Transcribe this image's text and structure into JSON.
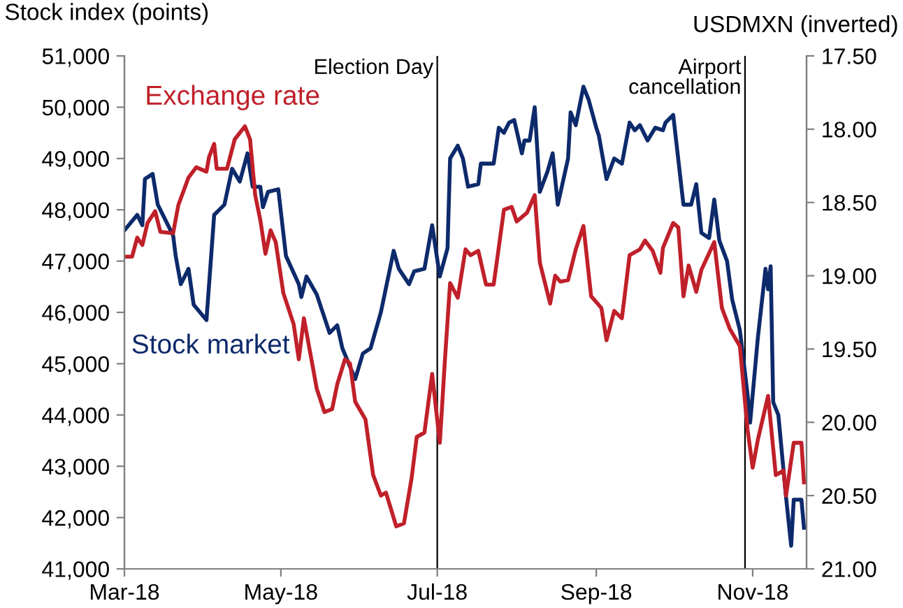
{
  "chart_data": {
    "type": "line",
    "ylabel": "Stock index (points)",
    "y2label": "USDMXN (inverted)",
    "xlim": [
      "2018-03-01",
      "2018-11-22"
    ],
    "xticks": [
      {
        "value": "2018-03-01",
        "label": "Mar-18"
      },
      {
        "value": "2018-05-01",
        "label": "May-18"
      },
      {
        "value": "2018-07-01",
        "label": "Jul-18"
      },
      {
        "value": "2018-09-01",
        "label": "Sep-18"
      },
      {
        "value": "2018-11-01",
        "label": "Nov-18"
      }
    ],
    "ylim": [
      41000,
      51000
    ],
    "yticks": [
      {
        "value": 41000,
        "label": "41,000"
      },
      {
        "value": 42000,
        "label": "42,000"
      },
      {
        "value": 43000,
        "label": "43,000"
      },
      {
        "value": 44000,
        "label": "44,000"
      },
      {
        "value": 45000,
        "label": "45,000"
      },
      {
        "value": 46000,
        "label": "46,000"
      },
      {
        "value": 47000,
        "label": "47,000"
      },
      {
        "value": 48000,
        "label": "48,000"
      },
      {
        "value": 49000,
        "label": "49,000"
      },
      {
        "value": 50000,
        "label": "50,000"
      },
      {
        "value": 51000,
        "label": "51,000"
      }
    ],
    "y2lim": [
      21.0,
      17.5
    ],
    "y2ticks": [
      {
        "value": 17.5,
        "label": "17.50"
      },
      {
        "value": 18.0,
        "label": "18.00"
      },
      {
        "value": 18.5,
        "label": "18.50"
      },
      {
        "value": 19.0,
        "label": "19.00"
      },
      {
        "value": 19.5,
        "label": "19.50"
      },
      {
        "value": 20.0,
        "label": "20.00"
      },
      {
        "value": 20.5,
        "label": "20.50"
      },
      {
        "value": 21.0,
        "label": "21.00"
      }
    ],
    "grid": false,
    "legend": false,
    "marker": "none",
    "line_style": "solid",
    "ref_lines": [
      {
        "axis": "x",
        "value": "2018-07-01",
        "label": "Election Day",
        "color": "#000000"
      },
      {
        "axis": "x",
        "value": "2018-10-29",
        "label": "Airport\ncancellation",
        "color": "#000000"
      }
    ],
    "series": [
      {
        "name": "Stock market",
        "color": "#0d2a6b",
        "x": [
          "2018-03-01",
          "2018-03-06",
          "2018-03-08",
          "2018-03-09",
          "2018-03-12",
          "2018-03-14",
          "2018-03-20",
          "2018-03-21",
          "2018-03-23",
          "2018-03-26",
          "2018-03-28",
          "2018-04-02",
          "2018-04-05",
          "2018-04-09",
          "2018-04-12",
          "2018-04-15",
          "2018-04-18",
          "2018-04-20",
          "2018-04-23",
          "2018-04-24",
          "2018-04-26",
          "2018-04-30",
          "2018-05-03",
          "2018-05-08",
          "2018-05-09",
          "2018-05-11",
          "2018-05-15",
          "2018-05-20",
          "2018-05-23",
          "2018-05-25",
          "2018-05-30",
          "2018-06-02",
          "2018-06-05",
          "2018-06-09",
          "2018-06-14",
          "2018-06-16",
          "2018-06-20",
          "2018-06-22",
          "2018-06-26",
          "2018-06-29",
          "2018-07-02",
          "2018-07-05",
          "2018-07-06",
          "2018-07-09",
          "2018-07-11",
          "2018-07-13",
          "2018-07-17",
          "2018-07-18",
          "2018-07-20",
          "2018-07-23",
          "2018-07-25",
          "2018-07-27",
          "2018-07-29",
          "2018-07-31",
          "2018-08-03",
          "2018-08-04",
          "2018-08-06",
          "2018-08-08",
          "2018-08-10",
          "2018-08-13",
          "2018-08-15",
          "2018-08-17",
          "2018-08-21",
          "2018-08-22",
          "2018-08-24",
          "2018-08-27",
          "2018-08-29",
          "2018-09-01",
          "2018-09-02",
          "2018-09-05",
          "2018-09-08",
          "2018-09-11",
          "2018-09-14",
          "2018-09-16",
          "2018-09-18",
          "2018-09-21",
          "2018-09-24",
          "2018-09-27",
          "2018-09-28",
          "2018-10-01",
          "2018-10-05",
          "2018-10-08",
          "2018-10-10",
          "2018-10-12",
          "2018-10-15",
          "2018-10-17",
          "2018-10-19",
          "2018-10-22",
          "2018-10-24",
          "2018-10-27",
          "2018-10-30",
          "2018-10-31",
          "2018-11-03",
          "2018-11-06",
          "2018-11-07",
          "2018-11-08",
          "2018-11-09",
          "2018-11-11",
          "2018-11-14",
          "2018-11-16",
          "2018-11-17",
          "2018-11-20",
          "2018-11-21"
        ],
        "values": [
          47600,
          47900,
          47700,
          48600,
          48700,
          48100,
          47500,
          47100,
          46550,
          46850,
          46150,
          45850,
          47900,
          48100,
          48800,
          48550,
          49100,
          48450,
          48450,
          48050,
          48350,
          48400,
          47100,
          46550,
          46300,
          46700,
          46350,
          45600,
          45750,
          45300,
          44700,
          45200,
          45300,
          46000,
          47200,
          46850,
          46550,
          46800,
          46850,
          47700,
          46700,
          47250,
          49000,
          49250,
          49000,
          48450,
          48500,
          48900,
          48900,
          48900,
          49600,
          49500,
          49700,
          49750,
          49100,
          49350,
          49350,
          50000,
          48350,
          48750,
          49100,
          48100,
          49000,
          49900,
          49650,
          50400,
          50150,
          49600,
          49450,
          48600,
          49000,
          48900,
          49700,
          49550,
          49650,
          49350,
          49600,
          49550,
          49700,
          49850,
          48100,
          48100,
          48500,
          47550,
          47450,
          48200,
          47400,
          47000,
          46250,
          45650,
          44400,
          43850,
          45500,
          46850,
          46450,
          46900,
          44250,
          44000,
          42400,
          41450,
          42350,
          42350,
          41800
        ]
      },
      {
        "name": "Exchange rate",
        "color": "#c0202a",
        "axis": "y2",
        "x": [
          "2018-03-01",
          "2018-03-04",
          "2018-03-06",
          "2018-03-08",
          "2018-03-10",
          "2018-03-13",
          "2018-03-15",
          "2018-03-20",
          "2018-03-22",
          "2018-03-26",
          "2018-03-29",
          "2018-04-02",
          "2018-04-03",
          "2018-04-05",
          "2018-04-06",
          "2018-04-10",
          "2018-04-13",
          "2018-04-17",
          "2018-04-19",
          "2018-04-21",
          "2018-04-23",
          "2018-04-25",
          "2018-04-27",
          "2018-04-29",
          "2018-05-02",
          "2018-05-06",
          "2018-05-08",
          "2018-05-10",
          "2018-05-15",
          "2018-05-18",
          "2018-05-21",
          "2018-05-23",
          "2018-05-26",
          "2018-05-28",
          "2018-05-30",
          "2018-06-03",
          "2018-06-06",
          "2018-06-09",
          "2018-06-11",
          "2018-06-15",
          "2018-06-18",
          "2018-06-21",
          "2018-06-23",
          "2018-06-26",
          "2018-06-29",
          "2018-07-02",
          "2018-07-04",
          "2018-07-06",
          "2018-07-09",
          "2018-07-12",
          "2018-07-14",
          "2018-07-17",
          "2018-07-20",
          "2018-07-23",
          "2018-07-27",
          "2018-07-30",
          "2018-08-01",
          "2018-08-05",
          "2018-08-08",
          "2018-08-10",
          "2018-08-14",
          "2018-08-16",
          "2018-08-18",
          "2018-08-21",
          "2018-08-24",
          "2018-08-27",
          "2018-08-30",
          "2018-09-03",
          "2018-09-05",
          "2018-09-08",
          "2018-09-11",
          "2018-09-14",
          "2018-09-18",
          "2018-09-20",
          "2018-09-23",
          "2018-09-26",
          "2018-09-27",
          "2018-10-01",
          "2018-10-03",
          "2018-10-05",
          "2018-10-07",
          "2018-10-10",
          "2018-10-12",
          "2018-10-17",
          "2018-10-20",
          "2018-10-23",
          "2018-10-27",
          "2018-10-30",
          "2018-11-01",
          "2018-11-03",
          "2018-11-07",
          "2018-11-10",
          "2018-11-13",
          "2018-11-14",
          "2018-11-17",
          "2018-11-20",
          "2018-11-21"
        ],
        "values": [
          18.87,
          18.87,
          18.74,
          18.79,
          18.64,
          18.56,
          18.7,
          18.71,
          18.52,
          18.33,
          18.26,
          18.29,
          18.19,
          18.1,
          18.27,
          18.27,
          18.07,
          17.98,
          18.07,
          18.45,
          18.62,
          18.85,
          18.69,
          18.77,
          19.12,
          19.33,
          19.57,
          19.29,
          19.77,
          19.93,
          19.91,
          19.74,
          19.57,
          19.6,
          19.86,
          19.98,
          20.36,
          20.5,
          20.48,
          20.71,
          20.69,
          20.38,
          20.1,
          20.07,
          19.67,
          20.14,
          19.57,
          19.05,
          19.15,
          18.82,
          18.86,
          18.83,
          19.06,
          19.06,
          18.55,
          18.53,
          18.63,
          18.57,
          18.45,
          18.91,
          19.19,
          19.0,
          19.04,
          19.03,
          18.82,
          18.66,
          19.14,
          19.22,
          19.44,
          19.24,
          19.29,
          18.86,
          18.82,
          18.76,
          18.83,
          18.98,
          18.81,
          18.64,
          18.67,
          19.14,
          18.93,
          19.11,
          18.96,
          18.77,
          19.22,
          19.36,
          19.48,
          20.05,
          20.31,
          20.12,
          19.82,
          20.36,
          20.33,
          20.5,
          20.14,
          20.14,
          20.41
        ]
      }
    ]
  }
}
